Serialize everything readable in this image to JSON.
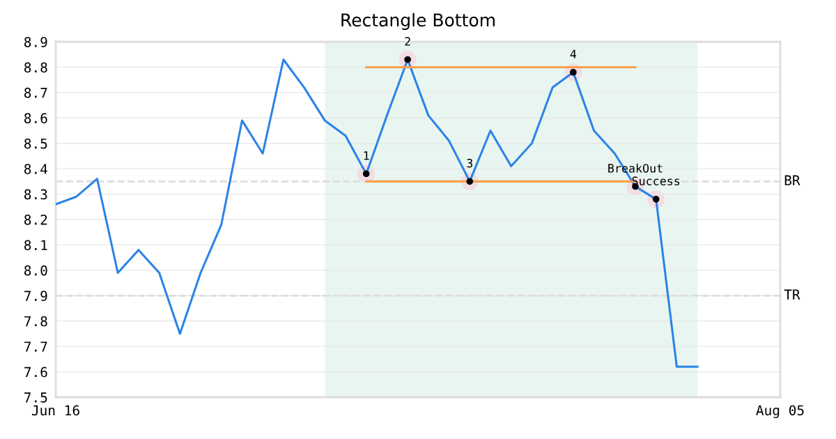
{
  "chart_data": {
    "type": "line",
    "title": "Rectangle Bottom",
    "categories": [
      "Jun 16",
      null,
      null,
      null,
      null,
      null,
      null,
      null,
      null,
      null,
      null,
      null,
      null,
      null,
      null,
      null,
      null,
      null,
      null,
      null,
      null,
      null,
      null,
      null,
      null,
      null,
      null,
      null,
      null,
      null,
      null,
      null,
      null,
      null,
      null,
      "Aug 05"
    ],
    "ylim": [
      7.5,
      8.9
    ],
    "yticks": [
      7.5,
      7.6,
      7.7,
      7.8,
      7.9,
      {
        "value": 8.0,
        "label": "8.0"
      },
      8.1,
      8.2,
      8.3,
      8.4,
      8.5,
      8.6,
      8.7,
      8.8,
      8.9
    ],
    "grid": "y",
    "legend": false,
    "series": [
      {
        "color": "#2b83e8",
        "values": [
          8.26,
          8.29,
          8.36,
          7.99,
          8.08,
          7.99,
          7.75,
          7.99,
          8.18,
          8.59,
          8.46,
          8.83,
          8.72,
          8.59,
          8.53,
          8.38,
          8.61,
          8.83,
          8.61,
          8.51,
          8.35,
          8.55,
          8.41,
          8.5,
          8.72,
          8.78,
          8.55,
          8.46,
          8.33,
          8.28,
          7.62,
          7.62,
          null,
          null,
          null,
          null
        ]
      },
      {
        "color": "#f9a04a",
        "values": [
          null,
          null,
          null,
          null,
          null,
          null,
          null,
          null,
          null,
          null,
          null,
          null,
          null,
          null,
          null,
          8.8,
          null,
          null,
          null,
          null,
          null,
          null,
          null,
          null,
          null,
          null,
          null,
          null,
          8.8,
          null,
          null,
          null,
          null,
          null,
          null,
          null
        ]
      },
      {
        "color": "#f9a04a",
        "values": [
          null,
          null,
          null,
          null,
          null,
          null,
          null,
          null,
          null,
          null,
          null,
          null,
          null,
          null,
          null,
          8.35,
          null,
          null,
          null,
          null,
          null,
          null,
          null,
          null,
          null,
          null,
          null,
          null,
          8.35,
          null,
          null,
          null,
          null,
          null,
          null,
          null
        ]
      },
      {
        "type": "scatter",
        "color": "#000000",
        "marker": "circle",
        "values": [
          null,
          null,
          null,
          null,
          null,
          null,
          null,
          null,
          null,
          null,
          null,
          null,
          null,
          null,
          null,
          8.38,
          null,
          8.83,
          null,
          null,
          8.35,
          null,
          null,
          null,
          null,
          8.78,
          null,
          null,
          8.33,
          8.28,
          null,
          null,
          null,
          null,
          null,
          null
        ]
      }
    ],
    "annotations": [
      {
        "text": "1",
        "y": 8.38
      },
      {
        "text": "2",
        "y": 8.83
      },
      {
        "text": "3",
        "y": 8.35
      },
      {
        "text": "4",
        "y": 8.78
      },
      {
        "text": "BreakOut",
        "y": 8.33
      },
      {
        "text": "Success",
        "y": 8.28
      }
    ],
    "ref_lines": [
      {
        "axis": "y",
        "value": 8.35,
        "label": "BR",
        "color": "#dddddd",
        "line_style": "dashed"
      },
      {
        "axis": "y",
        "value": 7.9,
        "label": "TR",
        "color": "#dddddd",
        "line_style": "dashed"
      }
    ]
  }
}
